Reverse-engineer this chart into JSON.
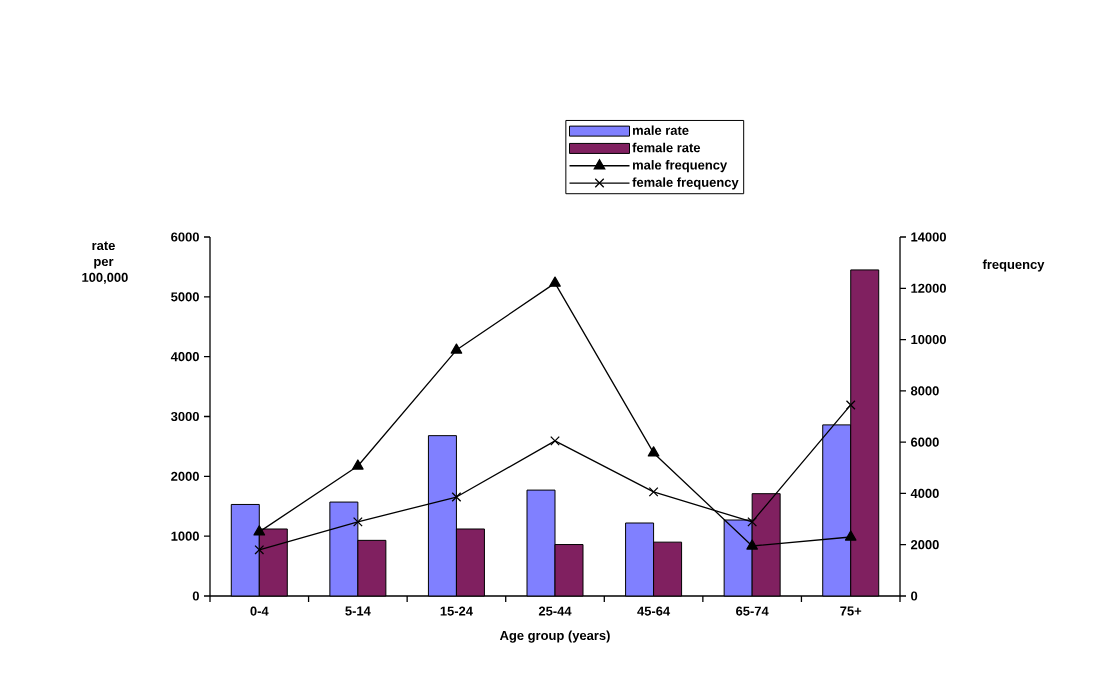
{
  "chart_data": {
    "type": "bar",
    "xlabel": "Age group (years)",
    "ylabel": "rate per 100,000",
    "y2label": "frequency",
    "categories": [
      "0-4",
      "5-14",
      "15-24",
      "25-44",
      "45-64",
      "65-74",
      "75+"
    ],
    "series": [
      {
        "name": "male rate",
        "color": "#8080ff",
        "values": [
          1530,
          1570,
          2680,
          1770,
          1220,
          1270,
          2860
        ]
      },
      {
        "name": "female rate",
        "color": "#802060",
        "values": [
          1120,
          930,
          1120,
          860,
          900,
          1710,
          5450
        ]
      },
      {
        "name": "male frequency",
        "type": "line",
        "axis": "y2",
        "color": "#000000",
        "marker": "triangle",
        "values": [
          2500,
          5070,
          9590,
          12200,
          5580,
          1950,
          2300
        ]
      },
      {
        "name": "female frequency",
        "type": "line",
        "axis": "y2",
        "color": "#000000",
        "marker": "cross",
        "values": [
          1800,
          2890,
          3860,
          6050,
          4060,
          2890,
          7450
        ]
      }
    ],
    "ylim": [
      0,
      6000
    ],
    "yticks": [
      0,
      1000,
      2000,
      3000,
      4000,
      5000,
      6000
    ],
    "y2lim": [
      0,
      14000
    ],
    "y2ticks": [
      0,
      2000,
      4000,
      6000,
      8000,
      10000,
      12000,
      14000
    ],
    "grid": false,
    "legend": "top"
  }
}
